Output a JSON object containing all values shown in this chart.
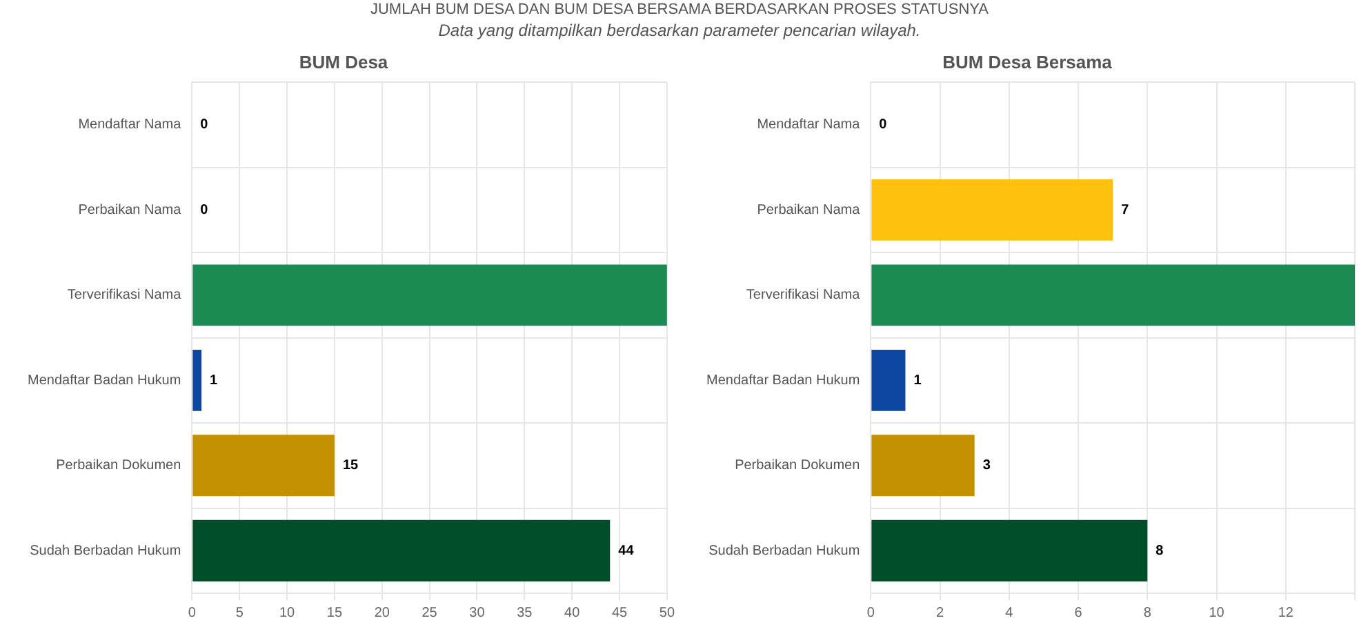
{
  "chart_data": [
    {
      "type": "bar",
      "orientation": "horizontal",
      "title": "BUM Desa",
      "annotations": [
        "JUMLAH BUM DESA DAN BUM DESA BERSAMA BERDASARKAN PROSES STATUSNYA",
        "Data yang ditampilkan berdasarkan parameter pencarian wilayah."
      ],
      "categories": [
        "Mendaftar Nama",
        "Perbaikan Nama",
        "Terverifikasi Nama",
        "Mendaftar Badan Hukum",
        "Perbaikan Dokumen",
        "Sudah Berbadan Hukum"
      ],
      "values": [
        0,
        0,
        50,
        1,
        15,
        44
      ],
      "colors": [
        "#fdc10e",
        "#fdc10e",
        "#1b8a53",
        "#0d47a1",
        "#c49102",
        "#004d2a"
      ],
      "value_labels": [
        "0",
        "0",
        null,
        "1",
        "15",
        "44"
      ],
      "xlim": [
        0,
        50
      ],
      "xticks": [
        0,
        5,
        10,
        15,
        20,
        25,
        30,
        35,
        40,
        45,
        50
      ],
      "grid": true,
      "legend": false
    },
    {
      "type": "bar",
      "orientation": "horizontal",
      "title": "BUM Desa Bersama",
      "categories": [
        "Mendaftar Nama",
        "Perbaikan Nama",
        "Terverifikasi Nama",
        "Mendaftar Badan Hukum",
        "Perbaikan Dokumen",
        "Sudah Berbadan Hukum"
      ],
      "values": [
        0,
        7,
        14,
        1,
        3,
        8
      ],
      "colors": [
        "#fdc10e",
        "#fdc10e",
        "#1b8a53",
        "#0d47a1",
        "#c49102",
        "#004d2a"
      ],
      "value_labels": [
        "0",
        "7",
        null,
        "1",
        "3",
        "8"
      ],
      "xlim": [
        0,
        14
      ],
      "xticks": [
        0,
        2,
        4,
        6,
        8,
        10,
        12,
        {
          "value": 14,
          "label": null
        }
      ],
      "grid": true,
      "legend": false
    }
  ]
}
